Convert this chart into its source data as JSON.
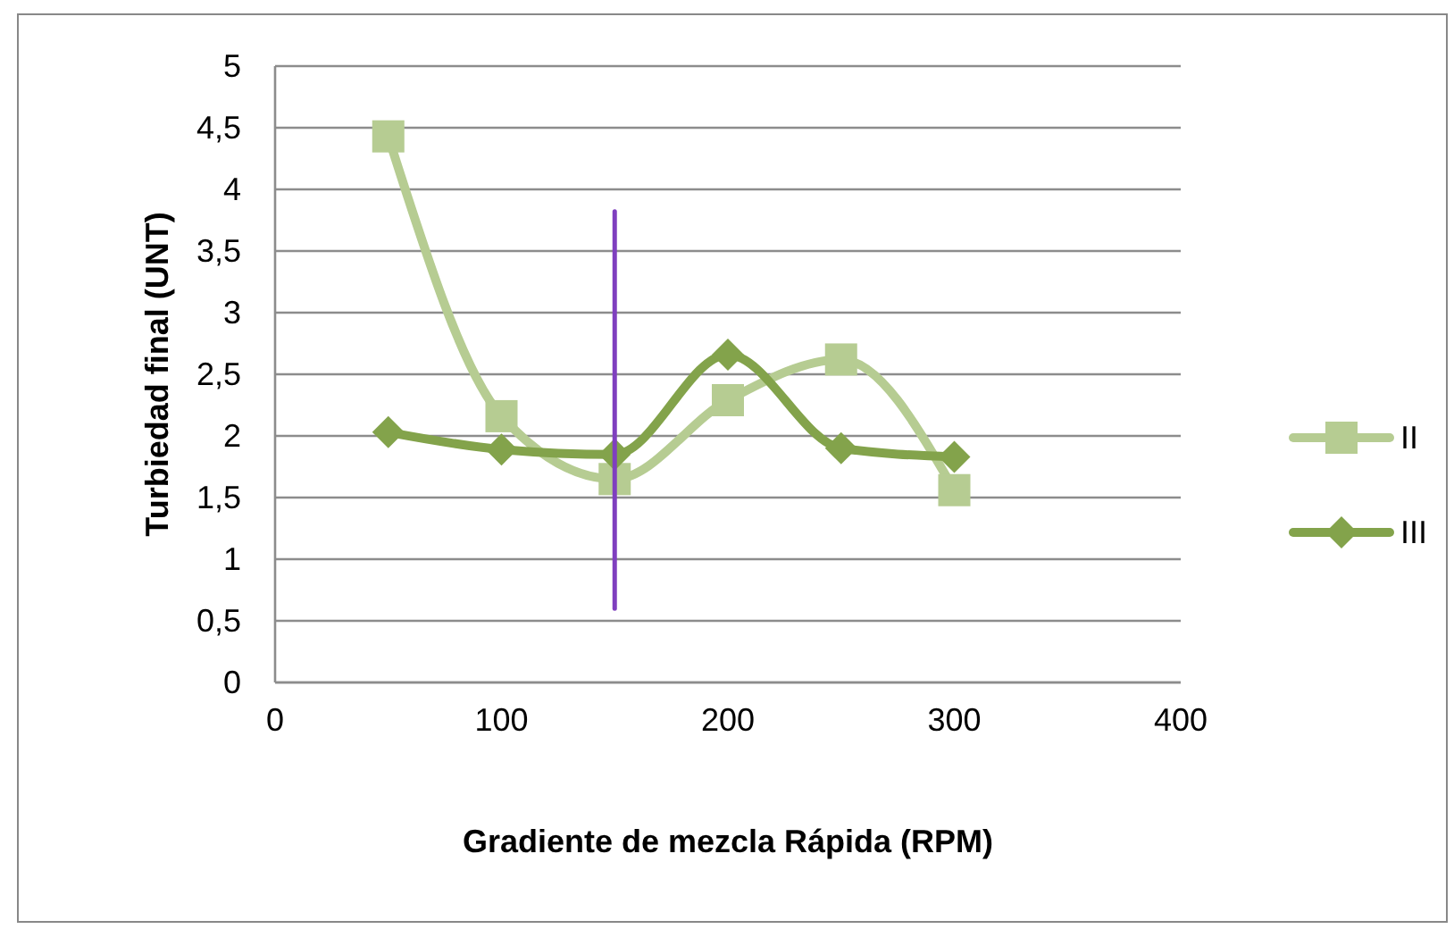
{
  "chart_data": {
    "type": "line",
    "xlabel": "Gradiente de mezcla Rápida (RPM)",
    "ylabel": "Turbiedad final (UNT)",
    "x": [
      50,
      100,
      150,
      200,
      250,
      300
    ],
    "series": [
      {
        "name": "II",
        "color": "#b6cc92",
        "values": [
          4.43,
          2.16,
          1.65,
          2.29,
          2.62,
          1.56
        ],
        "marker": "square"
      },
      {
        "name": "III",
        "color": "#83a34b",
        "values": [
          2.03,
          1.89,
          1.85,
          2.66,
          1.9,
          1.83
        ],
        "marker": "diamond"
      },
      {
        "color": "#7f3fbf",
        "x": [
          150,
          150
        ],
        "values": [
          0.6,
          3.82
        ],
        "marker": "none"
      }
    ],
    "xlim": [
      0,
      400
    ],
    "xticks": [
      0,
      100,
      200,
      300,
      400
    ],
    "ylim": [
      0,
      5
    ],
    "yticks": [
      0,
      {
        "value": 0.5,
        "label": "0,5"
      },
      1,
      {
        "value": 1.5,
        "label": "1,5"
      },
      2,
      {
        "value": 2.5,
        "label": "2,5"
      },
      3,
      {
        "value": 3.5,
        "label": "3,5"
      },
      4,
      {
        "value": 4.5,
        "label": "4,5"
      },
      5
    ],
    "grid": "y",
    "legend": "right"
  }
}
